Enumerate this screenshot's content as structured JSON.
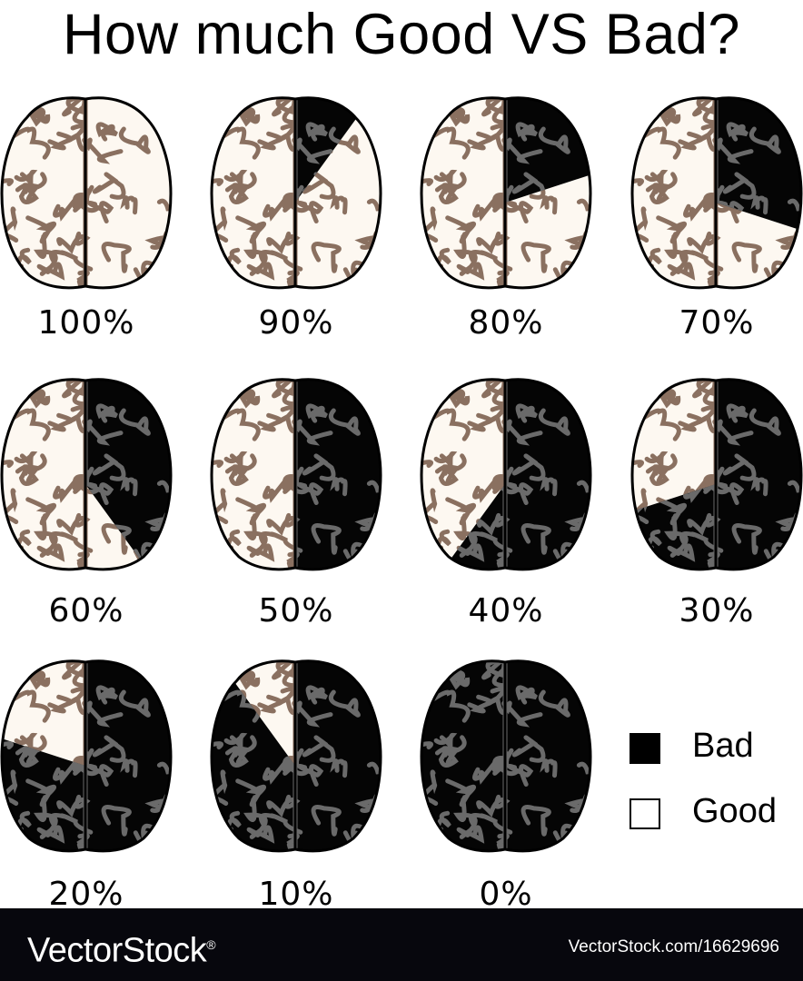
{
  "title": "How much Good VS Bad?",
  "brains": [
    {
      "label": "100%",
      "good": 100
    },
    {
      "label": "90%",
      "good": 90
    },
    {
      "label": "80%",
      "good": 80
    },
    {
      "label": "70%",
      "good": 70
    },
    {
      "label": "60%",
      "good": 60
    },
    {
      "label": "50%",
      "good": 50
    },
    {
      "label": "40%",
      "good": 40
    },
    {
      "label": "30%",
      "good": 30
    },
    {
      "label": "20%",
      "good": 20
    },
    {
      "label": "10%",
      "good": 10
    },
    {
      "label": "0%",
      "good": 0
    }
  ],
  "legend": [
    {
      "label": "Bad",
      "color": "#000000"
    },
    {
      "label": "Good",
      "color": "#ffffff"
    }
  ],
  "colors": {
    "good_fill": "#fdf8f1",
    "good_fold": "#8a7060",
    "bad_fill": "#050505",
    "bad_fold": "#6a6a6a",
    "outline": "#000000"
  },
  "footer": {
    "brand": "VectorStock",
    "brand_mark": "®",
    "url": "VectorStock.com/16629696"
  }
}
